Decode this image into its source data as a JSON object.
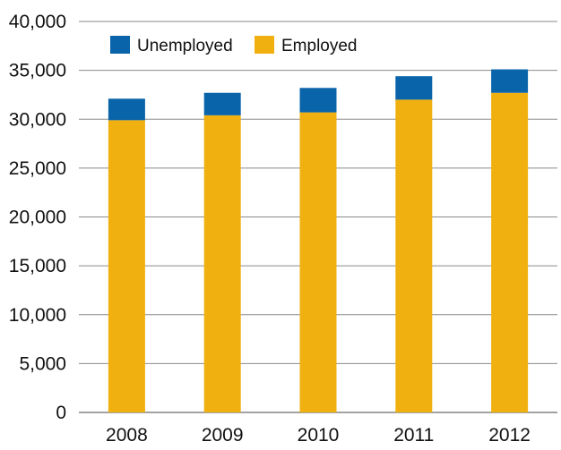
{
  "chart_data": {
    "type": "bar",
    "stacked": true,
    "categories": [
      "2008",
      "2009",
      "2010",
      "2011",
      "2012"
    ],
    "series": [
      {
        "name": "Employed",
        "values": [
          29900,
          30400,
          30700,
          32000,
          32700
        ],
        "color": "#F0B010"
      },
      {
        "name": "Unemployed",
        "values": [
          2200,
          2300,
          2500,
          2400,
          2400
        ],
        "color": "#0A64AA"
      }
    ],
    "ylim": [
      0,
      40000
    ],
    "y_ticks": [
      "0",
      "5,000",
      "10,000",
      "15,000",
      "20,000",
      "25,000",
      "30,000",
      "35,000",
      "40,000"
    ],
    "grid": true,
    "legend_placement": "top-left",
    "legend_order": [
      "Unemployed",
      "Employed"
    ],
    "title": "",
    "xlabel": "",
    "ylabel": ""
  }
}
